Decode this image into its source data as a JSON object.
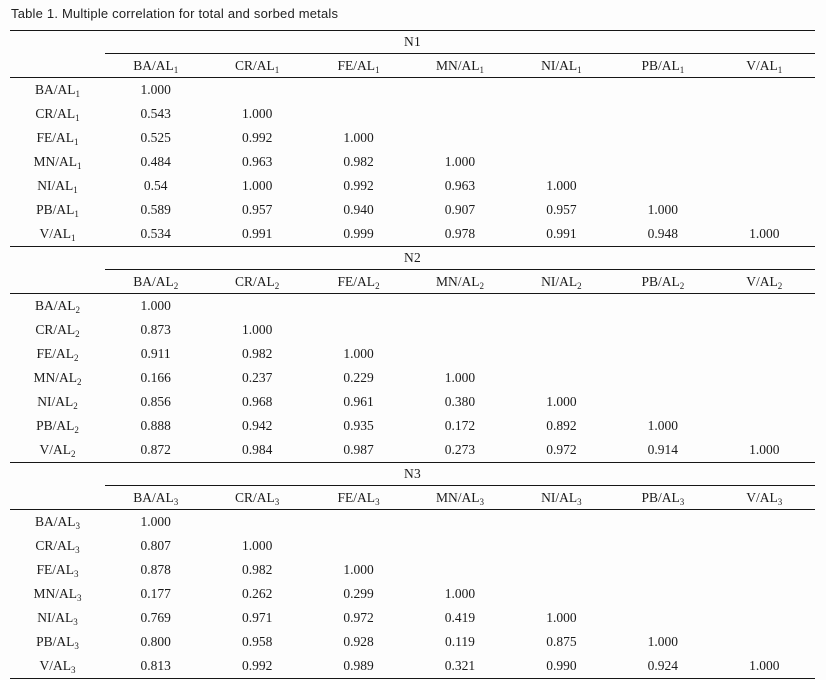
{
  "title": "Table 1. Multiple correlation for total and sorbed metals",
  "colors": {
    "background": "#fdfdfd",
    "text": "#1b1b1b",
    "rule": "#161616"
  },
  "table": {
    "sections": [
      {
        "name": "N1",
        "columns": [
          {
            "label": "BA/AL",
            "sub": "1"
          },
          {
            "label": "CR/AL",
            "sub": "1"
          },
          {
            "label": "FE/AL",
            "sub": "1"
          },
          {
            "label": "MN/AL",
            "sub": "1"
          },
          {
            "label": "NI/AL",
            "sub": "1"
          },
          {
            "label": "PB/AL",
            "sub": "1"
          },
          {
            "label": "V/AL",
            "sub": "1"
          }
        ],
        "rows": [
          {
            "label": "BA/AL",
            "sub": "1",
            "values": [
              "1.000",
              "",
              "",
              "",
              "",
              "",
              ""
            ]
          },
          {
            "label": "CR/AL",
            "sub": "1",
            "values": [
              "0.543",
              "1.000",
              "",
              "",
              "",
              "",
              ""
            ]
          },
          {
            "label": "FE/AL",
            "sub": "1",
            "values": [
              "0.525",
              "0.992",
              "1.000",
              "",
              "",
              "",
              ""
            ]
          },
          {
            "label": "MN/AL",
            "sub": "1",
            "values": [
              "0.484",
              "0.963",
              "0.982",
              "1.000",
              "",
              "",
              ""
            ]
          },
          {
            "label": "NI/AL",
            "sub": "1",
            "values": [
              "0.54",
              "1.000",
              "0.992",
              "0.963",
              "1.000",
              "",
              ""
            ]
          },
          {
            "label": "PB/AL",
            "sub": "1",
            "values": [
              "0.589",
              "0.957",
              "0.940",
              "0.907",
              "0.957",
              "1.000",
              ""
            ]
          },
          {
            "label": "V/AL",
            "sub": "1",
            "values": [
              "0.534",
              "0.991",
              "0.999",
              "0.978",
              "0.991",
              "0.948",
              "1.000"
            ]
          }
        ]
      },
      {
        "name": "N2",
        "columns": [
          {
            "label": "BA/AL",
            "sub": "2"
          },
          {
            "label": "CR/AL",
            "sub": "2"
          },
          {
            "label": "FE/AL",
            "sub": "2"
          },
          {
            "label": "MN/AL",
            "sub": "2"
          },
          {
            "label": "NI/AL",
            "sub": "2"
          },
          {
            "label": "PB/AL",
            "sub": "2"
          },
          {
            "label": "V/AL",
            "sub": "2"
          }
        ],
        "rows": [
          {
            "label": "BA/AL",
            "sub": "2",
            "values": [
              "1.000",
              "",
              "",
              "",
              "",
              "",
              ""
            ]
          },
          {
            "label": "CR/AL",
            "sub": "2",
            "values": [
              "0.873",
              "1.000",
              "",
              "",
              "",
              "",
              ""
            ]
          },
          {
            "label": "FE/AL",
            "sub": "2",
            "values": [
              "0.911",
              "0.982",
              "1.000",
              "",
              "",
              "",
              ""
            ]
          },
          {
            "label": "MN/AL",
            "sub": "2",
            "values": [
              "0.166",
              "0.237",
              "0.229",
              "1.000",
              "",
              "",
              ""
            ]
          },
          {
            "label": "NI/AL",
            "sub": "2",
            "values": [
              "0.856",
              "0.968",
              "0.961",
              "0.380",
              "1.000",
              "",
              ""
            ]
          },
          {
            "label": "PB/AL",
            "sub": "2",
            "values": [
              "0.888",
              "0.942",
              "0.935",
              "0.172",
              "0.892",
              "1.000",
              ""
            ]
          },
          {
            "label": "V/AL",
            "sub": "2",
            "values": [
              "0.872",
              "0.984",
              "0.987",
              "0.273",
              "0.972",
              "0.914",
              "1.000"
            ]
          }
        ]
      },
      {
        "name": "N3",
        "columns": [
          {
            "label": "BA/AL",
            "sub": "3"
          },
          {
            "label": "CR/AL",
            "sub": "3"
          },
          {
            "label": "FE/AL",
            "sub": "3"
          },
          {
            "label": "MN/AL",
            "sub": "3"
          },
          {
            "label": "NI/AL",
            "sub": "3"
          },
          {
            "label": "PB/AL",
            "sub": "3"
          },
          {
            "label": "V/AL",
            "sub": "3"
          }
        ],
        "rows": [
          {
            "label": "BA/AL",
            "sub": "3",
            "values": [
              "1.000",
              "",
              "",
              "",
              "",
              "",
              ""
            ]
          },
          {
            "label": "CR/AL",
            "sub": "3",
            "values": [
              "0.807",
              "1.000",
              "",
              "",
              "",
              "",
              ""
            ]
          },
          {
            "label": "FE/AL",
            "sub": "3",
            "values": [
              "0.878",
              "0.982",
              "1.000",
              "",
              "",
              "",
              ""
            ]
          },
          {
            "label": "MN/AL",
            "sub": "3",
            "values": [
              "0.177",
              "0.262",
              "0.299",
              "1.000",
              "",
              "",
              ""
            ]
          },
          {
            "label": "NI/AL",
            "sub": "3",
            "values": [
              "0.769",
              "0.971",
              "0.972",
              "0.419",
              "1.000",
              "",
              ""
            ]
          },
          {
            "label": "PB/AL",
            "sub": "3",
            "values": [
              "0.800",
              "0.958",
              "0.928",
              "0.119",
              "0.875",
              "1.000",
              ""
            ]
          },
          {
            "label": "V/AL",
            "sub": "3",
            "values": [
              "0.813",
              "0.992",
              "0.989",
              "0.321",
              "0.990",
              "0.924",
              "1.000"
            ]
          }
        ]
      }
    ]
  }
}
